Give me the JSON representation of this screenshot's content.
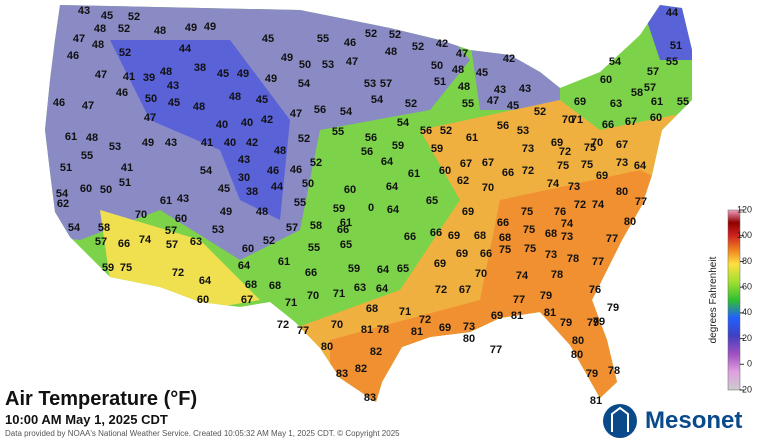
{
  "title": "Air Temperature (°F)",
  "timestamp": "10:00 AM May 1, 2025 CDT",
  "credit": "Data provided by NOAA's National Weather Service. Created 10:05:32 AM May 1, 2025 CDT. © Copyright 2025",
  "logo": "Mesonet",
  "legend": {
    "label": "degrees Fahrenheit",
    "ticks": [
      120,
      100,
      80,
      60,
      40,
      20,
      0,
      -20
    ],
    "range": [
      -20,
      120
    ]
  },
  "stations": [
    43,
    45,
    52,
    48,
    52,
    48,
    49,
    49,
    45,
    55,
    46,
    52,
    52,
    42,
    47,
    44,
    51,
    55,
    54,
    60,
    57,
    57,
    58,
    61,
    55,
    60,
    63,
    69,
    47,
    48,
    52,
    44,
    38,
    45,
    49,
    49,
    50,
    53,
    47,
    48,
    52,
    50,
    48,
    45,
    42,
    43,
    43,
    47,
    45,
    52,
    46,
    47,
    41,
    39,
    48,
    46,
    50,
    43,
    45,
    48,
    48,
    45,
    49,
    54,
    53,
    57,
    51,
    48,
    46,
    47,
    47,
    40,
    40,
    42,
    41,
    40,
    42,
    47,
    56,
    54,
    54,
    52,
    55,
    61,
    56,
    53,
    70,
    71,
    66,
    67,
    61,
    48,
    53,
    49,
    43,
    48,
    52,
    55,
    56,
    54,
    56,
    52,
    59,
    59,
    64,
    56,
    51,
    55,
    41,
    43,
    46,
    52,
    60,
    64,
    61,
    60,
    62,
    67,
    67,
    70,
    66,
    72,
    73,
    69,
    75,
    72,
    75,
    75,
    70,
    67,
    73,
    64,
    74,
    73,
    69,
    80,
    77,
    74,
    72,
    76,
    75,
    80,
    77,
    74,
    73,
    75,
    68,
    54,
    60,
    62,
    50,
    51,
    54,
    30,
    46,
    44,
    38,
    45,
    50,
    48,
    49,
    43,
    61,
    55,
    54,
    58,
    70,
    57,
    60,
    63,
    53,
    60,
    52,
    57,
    58,
    61,
    59,
    0,
    64,
    65,
    69,
    66,
    65,
    66,
    55,
    61,
    64,
    66,
    69,
    68,
    66,
    68,
    57,
    66,
    74,
    57,
    72,
    59,
    75,
    64,
    60,
    68,
    67,
    68,
    71,
    70,
    71,
    63,
    64,
    66,
    59,
    64,
    65,
    69,
    69,
    72,
    67,
    66,
    70,
    74,
    75,
    75,
    73,
    78,
    77,
    76,
    79,
    77,
    78,
    79,
    81,
    79,
    72,
    77,
    70,
    81,
    78,
    68,
    71,
    72,
    81,
    69,
    73,
    69,
    81,
    80,
    77,
    80,
    82,
    83,
    82,
    83,
    79,
    79,
    80,
    80,
    79,
    78,
    81
  ]
}
